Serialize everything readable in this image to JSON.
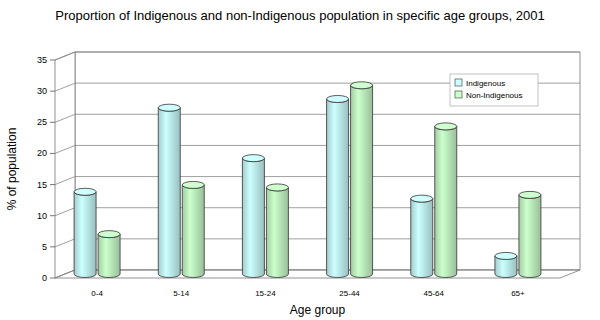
{
  "chart_data": {
    "type": "bar",
    "title": "Proportion of Indigenous and non-Indigenous population in specific age groups, 2001",
    "x_label": "Age group",
    "y_label": "% of population",
    "categories": [
      "0-4",
      "5-14",
      "15-24",
      "25-44",
      "45-64",
      "65+"
    ],
    "series": [
      {
        "name": "Indigenous",
        "color": "#ccffff",
        "values": [
          13.2,
          26.7,
          18.6,
          28.1,
          12.1,
          2.9
        ]
      },
      {
        "name": "Non-Indigenous",
        "color": "#ccffcc",
        "values": [
          6.4,
          14.3,
          13.9,
          30.3,
          23.7,
          12.7
        ]
      }
    ],
    "ylim": [
      0,
      35
    ],
    "yticks": [
      0,
      5,
      10,
      15,
      20,
      25,
      30,
      35
    ],
    "grid": true,
    "legend": "upper right"
  }
}
